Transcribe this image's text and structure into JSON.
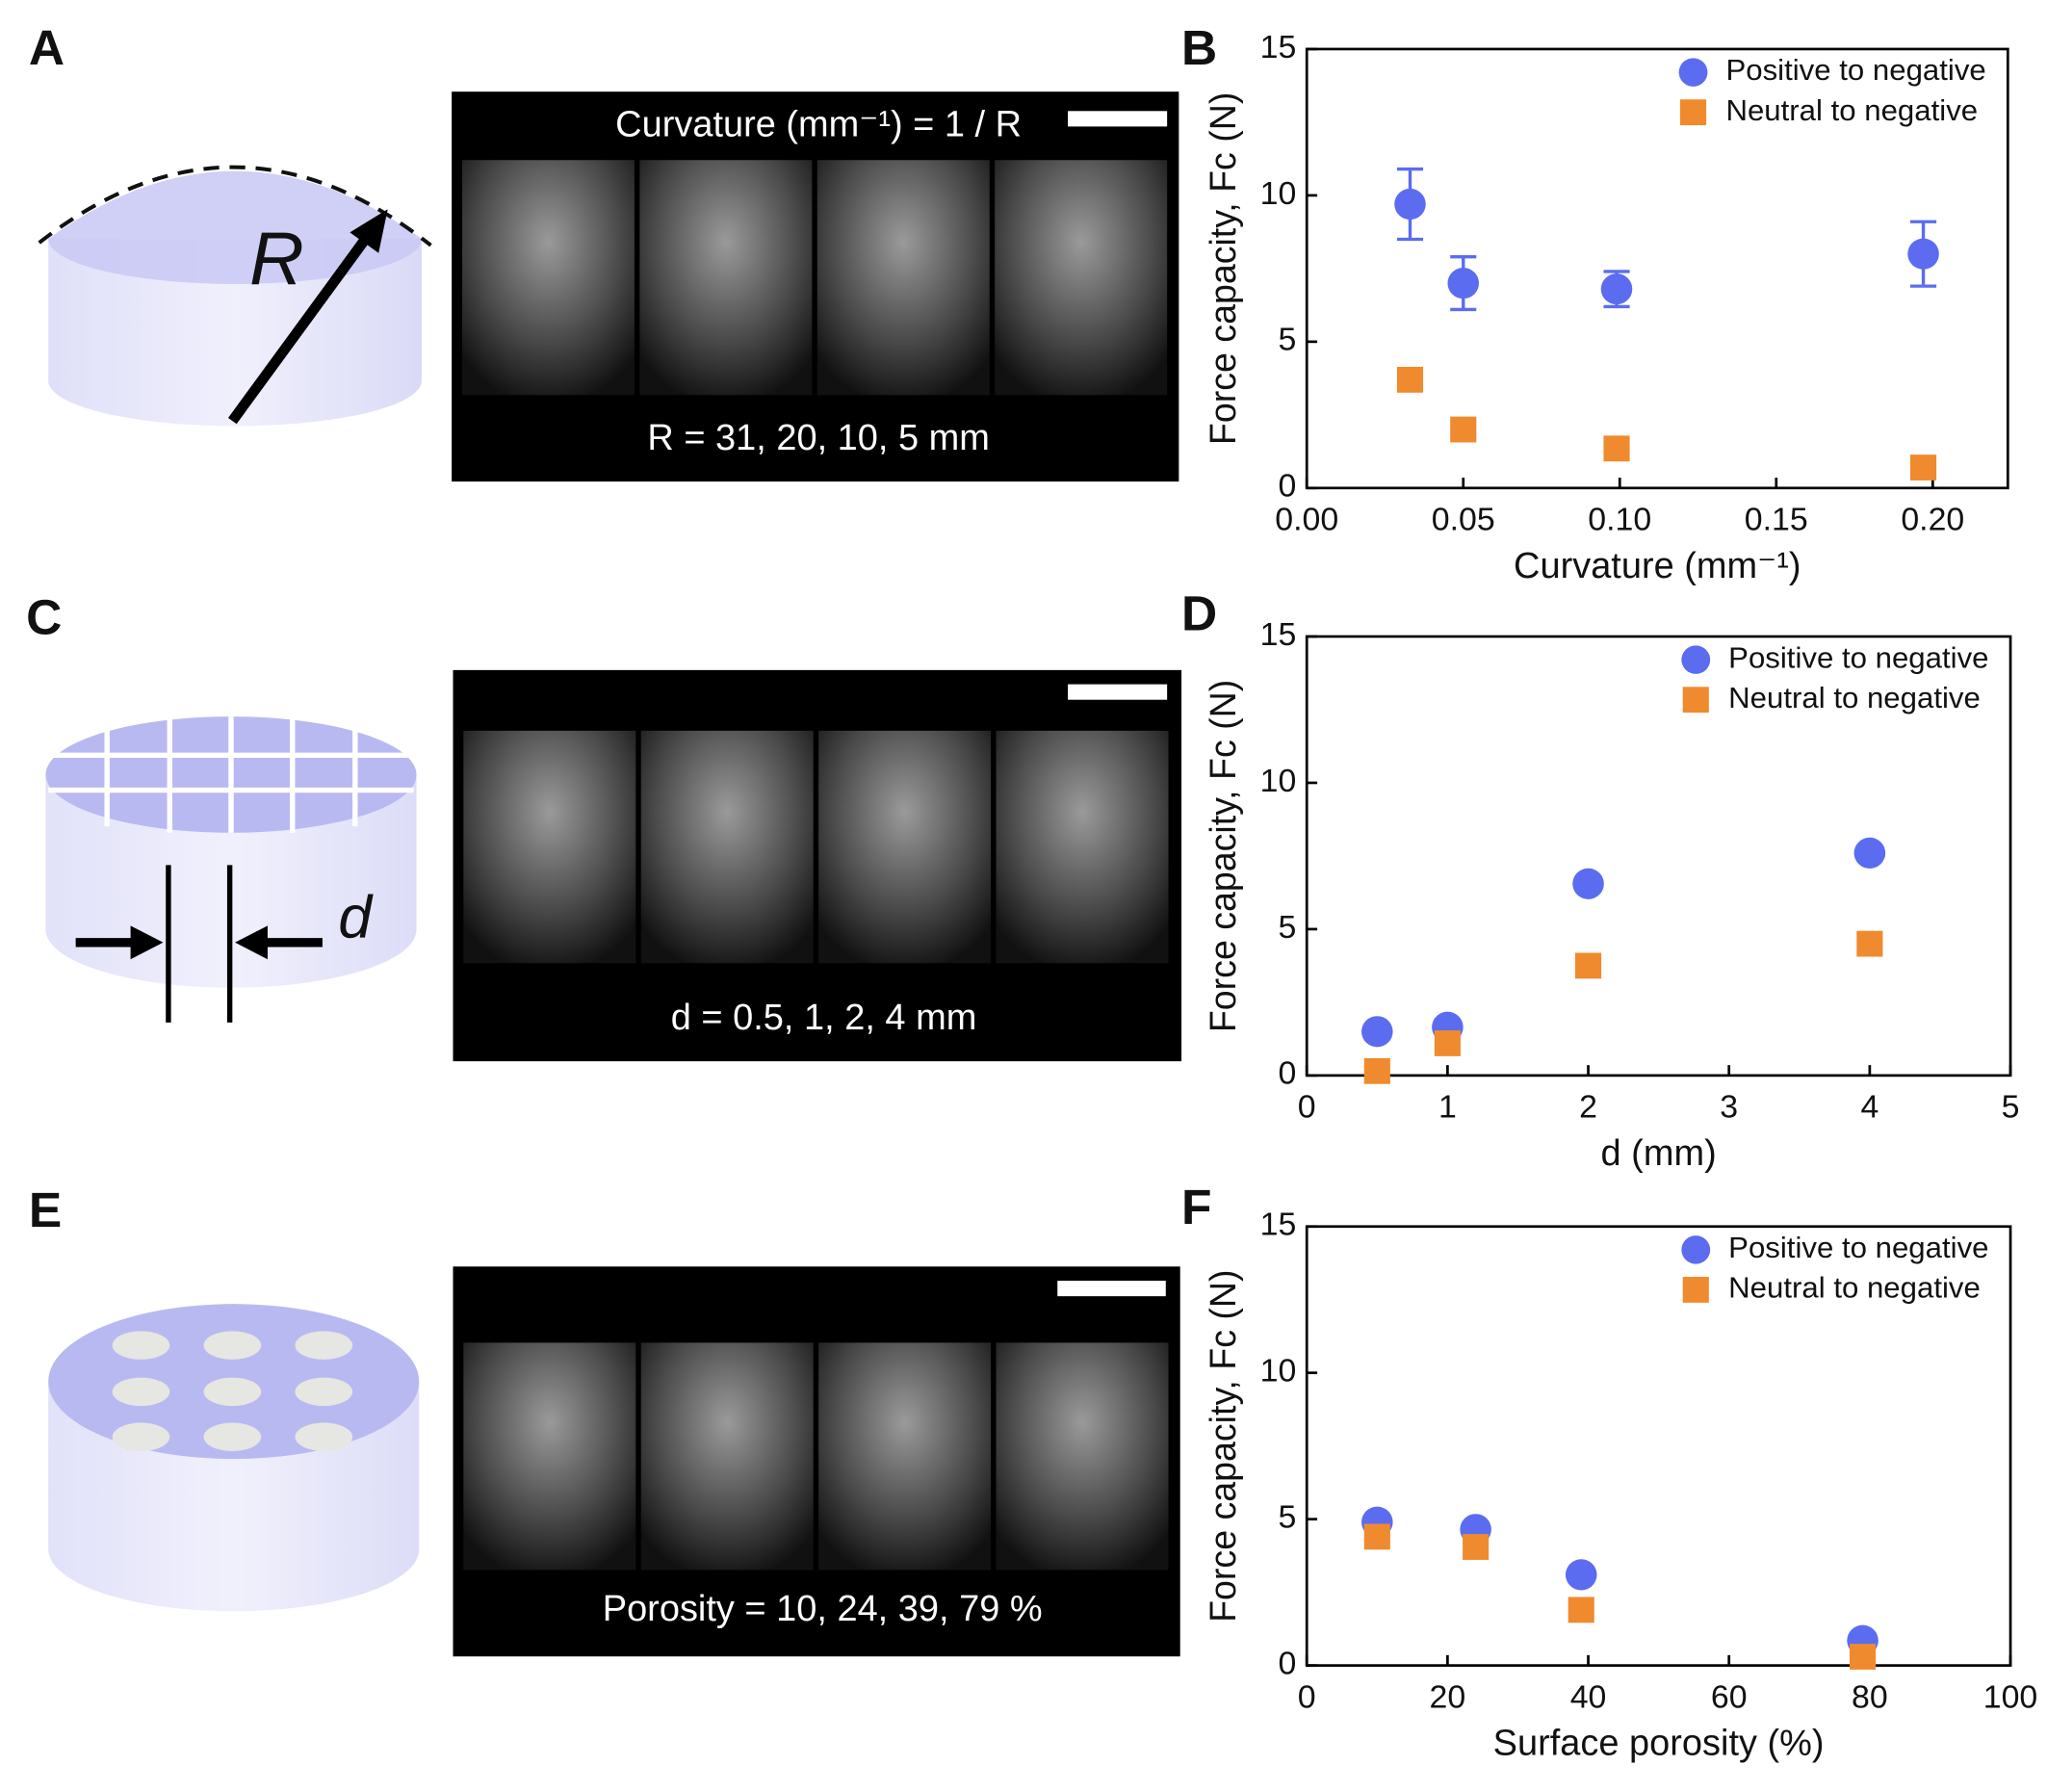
{
  "panel_labels": [
    "A",
    "B",
    "C",
    "D",
    "E",
    "F"
  ],
  "diagram_labels": [
    "R",
    "d"
  ],
  "photos": [
    {
      "caption_top": "Curvature (mm⁻¹) = 1 / R",
      "caption": "R = 31, 20, 10, 5  mm"
    },
    {
      "caption": "d = 0.5, 1, 2, 4 mm"
    },
    {
      "caption": "Porosity = 10, 24, 39, 79 %"
    }
  ],
  "chart_data": [
    {
      "type": "scatter",
      "xlabel": "Curvature (mm⁻¹)",
      "ylabel": "Force capacity, Fc (N)",
      "x": [
        0.033,
        0.05,
        0.099,
        0.197
      ],
      "series": [
        {
          "name": "Positive to negative",
          "color": "#5b6cf0",
          "marker": "circle",
          "values": [
            9.7,
            7.0,
            6.8,
            8.0
          ],
          "errors": [
            1.2,
            0.9,
            0.6,
            1.1
          ]
        },
        {
          "name": "Neutral to negative",
          "color": "#f08a2e",
          "marker": "square",
          "values": [
            3.7,
            2.0,
            1.35,
            0.7
          ]
        }
      ],
      "xlim": [
        0,
        0.224
      ],
      "xticks": [
        {
          "value": 0,
          "label": "0.00"
        },
        0.05,
        {
          "value": 0.1,
          "label": "0.10"
        },
        0.15,
        {
          "value": 0.2,
          "label": "0.20"
        }
      ],
      "ylim": [
        0,
        15
      ],
      "yticks": [
        0,
        5,
        10,
        15
      ],
      "legend": "upper right"
    },
    {
      "type": "scatter",
      "xlabel": "d (mm)",
      "ylabel": "Force capacity, Fc (N)",
      "x": [
        0.5,
        1,
        2,
        4
      ],
      "series": [
        {
          "name": "Positive to negative",
          "color": "#5b6cf0",
          "marker": "circle",
          "values": [
            1.5,
            1.65,
            6.55,
            7.6
          ]
        },
        {
          "name": "Neutral to negative",
          "color": "#f08a2e",
          "marker": "square",
          "values": [
            0.15,
            1.1,
            3.75,
            4.5
          ]
        }
      ],
      "xlim": [
        0,
        5
      ],
      "xticks": [
        0,
        1,
        2,
        3,
        4,
        5
      ],
      "ylim": [
        0,
        15
      ],
      "yticks": [
        0,
        5,
        10,
        15
      ],
      "legend": "upper right"
    },
    {
      "type": "scatter",
      "xlabel": "Surface porosity (%)",
      "ylabel": "Force capacity, Fc (N)",
      "x": [
        10,
        24,
        39,
        79
      ],
      "series": [
        {
          "name": "Positive to negative",
          "color": "#5b6cf0",
          "marker": "circle",
          "values": [
            4.9,
            4.65,
            3.1,
            0.85
          ]
        },
        {
          "name": "Neutral to negative",
          "color": "#f08a2e",
          "marker": "square",
          "values": [
            4.4,
            4.05,
            1.9,
            0.3
          ]
        }
      ],
      "xlim": [
        0,
        100
      ],
      "xticks": [
        0,
        20,
        40,
        60,
        80,
        100
      ],
      "ylim": [
        0,
        15
      ],
      "yticks": [
        0,
        5,
        10,
        15
      ],
      "legend": "upper right"
    }
  ]
}
